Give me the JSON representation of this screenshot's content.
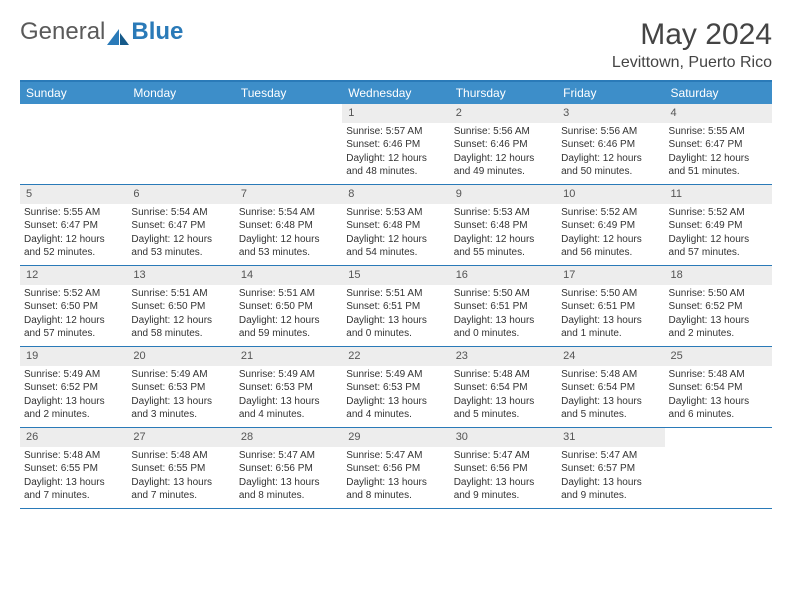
{
  "brand": {
    "part1": "General",
    "part2": "Blue"
  },
  "title": "May 2024",
  "location": "Levittown, Puerto Rico",
  "colors": {
    "header_bg": "#3d8ec9",
    "header_border": "#2a7ab8",
    "daynum_bg": "#ededed",
    "text": "#333333",
    "brand_gray": "#5a5a5a",
    "brand_blue": "#2a7ab8"
  },
  "days_of_week": [
    "Sunday",
    "Monday",
    "Tuesday",
    "Wednesday",
    "Thursday",
    "Friday",
    "Saturday"
  ],
  "weeks": [
    [
      {
        "n": "",
        "sr": "",
        "ss": "",
        "dl": ""
      },
      {
        "n": "",
        "sr": "",
        "ss": "",
        "dl": ""
      },
      {
        "n": "",
        "sr": "",
        "ss": "",
        "dl": ""
      },
      {
        "n": "1",
        "sr": "5:57 AM",
        "ss": "6:46 PM",
        "dl": "12 hours and 48 minutes."
      },
      {
        "n": "2",
        "sr": "5:56 AM",
        "ss": "6:46 PM",
        "dl": "12 hours and 49 minutes."
      },
      {
        "n": "3",
        "sr": "5:56 AM",
        "ss": "6:46 PM",
        "dl": "12 hours and 50 minutes."
      },
      {
        "n": "4",
        "sr": "5:55 AM",
        "ss": "6:47 PM",
        "dl": "12 hours and 51 minutes."
      }
    ],
    [
      {
        "n": "5",
        "sr": "5:55 AM",
        "ss": "6:47 PM",
        "dl": "12 hours and 52 minutes."
      },
      {
        "n": "6",
        "sr": "5:54 AM",
        "ss": "6:47 PM",
        "dl": "12 hours and 53 minutes."
      },
      {
        "n": "7",
        "sr": "5:54 AM",
        "ss": "6:48 PM",
        "dl": "12 hours and 53 minutes."
      },
      {
        "n": "8",
        "sr": "5:53 AM",
        "ss": "6:48 PM",
        "dl": "12 hours and 54 minutes."
      },
      {
        "n": "9",
        "sr": "5:53 AM",
        "ss": "6:48 PM",
        "dl": "12 hours and 55 minutes."
      },
      {
        "n": "10",
        "sr": "5:52 AM",
        "ss": "6:49 PM",
        "dl": "12 hours and 56 minutes."
      },
      {
        "n": "11",
        "sr": "5:52 AM",
        "ss": "6:49 PM",
        "dl": "12 hours and 57 minutes."
      }
    ],
    [
      {
        "n": "12",
        "sr": "5:52 AM",
        "ss": "6:50 PM",
        "dl": "12 hours and 57 minutes."
      },
      {
        "n": "13",
        "sr": "5:51 AM",
        "ss": "6:50 PM",
        "dl": "12 hours and 58 minutes."
      },
      {
        "n": "14",
        "sr": "5:51 AM",
        "ss": "6:50 PM",
        "dl": "12 hours and 59 minutes."
      },
      {
        "n": "15",
        "sr": "5:51 AM",
        "ss": "6:51 PM",
        "dl": "13 hours and 0 minutes."
      },
      {
        "n": "16",
        "sr": "5:50 AM",
        "ss": "6:51 PM",
        "dl": "13 hours and 0 minutes."
      },
      {
        "n": "17",
        "sr": "5:50 AM",
        "ss": "6:51 PM",
        "dl": "13 hours and 1 minute."
      },
      {
        "n": "18",
        "sr": "5:50 AM",
        "ss": "6:52 PM",
        "dl": "13 hours and 2 minutes."
      }
    ],
    [
      {
        "n": "19",
        "sr": "5:49 AM",
        "ss": "6:52 PM",
        "dl": "13 hours and 2 minutes."
      },
      {
        "n": "20",
        "sr": "5:49 AM",
        "ss": "6:53 PM",
        "dl": "13 hours and 3 minutes."
      },
      {
        "n": "21",
        "sr": "5:49 AM",
        "ss": "6:53 PM",
        "dl": "13 hours and 4 minutes."
      },
      {
        "n": "22",
        "sr": "5:49 AM",
        "ss": "6:53 PM",
        "dl": "13 hours and 4 minutes."
      },
      {
        "n": "23",
        "sr": "5:48 AM",
        "ss": "6:54 PM",
        "dl": "13 hours and 5 minutes."
      },
      {
        "n": "24",
        "sr": "5:48 AM",
        "ss": "6:54 PM",
        "dl": "13 hours and 5 minutes."
      },
      {
        "n": "25",
        "sr": "5:48 AM",
        "ss": "6:54 PM",
        "dl": "13 hours and 6 minutes."
      }
    ],
    [
      {
        "n": "26",
        "sr": "5:48 AM",
        "ss": "6:55 PM",
        "dl": "13 hours and 7 minutes."
      },
      {
        "n": "27",
        "sr": "5:48 AM",
        "ss": "6:55 PM",
        "dl": "13 hours and 7 minutes."
      },
      {
        "n": "28",
        "sr": "5:47 AM",
        "ss": "6:56 PM",
        "dl": "13 hours and 8 minutes."
      },
      {
        "n": "29",
        "sr": "5:47 AM",
        "ss": "6:56 PM",
        "dl": "13 hours and 8 minutes."
      },
      {
        "n": "30",
        "sr": "5:47 AM",
        "ss": "6:56 PM",
        "dl": "13 hours and 9 minutes."
      },
      {
        "n": "31",
        "sr": "5:47 AM",
        "ss": "6:57 PM",
        "dl": "13 hours and 9 minutes."
      },
      {
        "n": "",
        "sr": "",
        "ss": "",
        "dl": ""
      }
    ]
  ],
  "labels": {
    "sunrise": "Sunrise:",
    "sunset": "Sunset:",
    "daylight": "Daylight:"
  }
}
